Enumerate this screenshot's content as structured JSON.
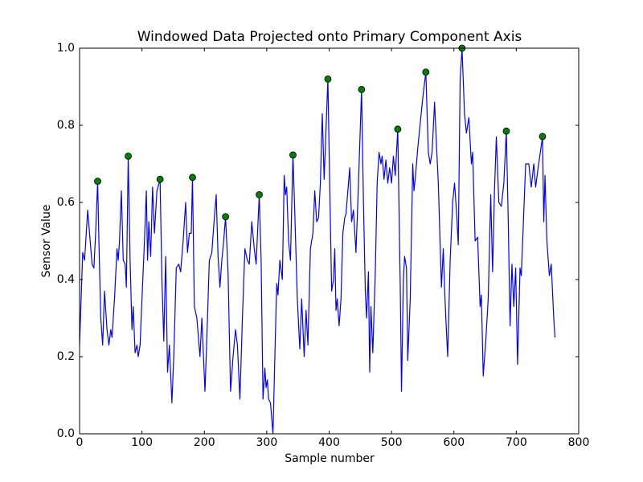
{
  "chart_data": {
    "type": "line",
    "title": "Windowed Data Projected onto Primary Component Axis",
    "x_label": "Sample number",
    "y_label": "Sensor Value",
    "xlim": [
      0,
      800
    ],
    "xticks": [
      0,
      100,
      200,
      300,
      400,
      500,
      600,
      700,
      800
    ],
    "ylim": [
      0,
      1
    ],
    "yticks": [
      {
        "value": 0,
        "label": "0.0"
      },
      {
        "value": 0.2,
        "label": "0.2"
      },
      {
        "value": 0.4,
        "label": "0.4"
      },
      {
        "value": 0.6,
        "label": "0.6"
      },
      {
        "value": 0.8,
        "label": "0.8"
      },
      {
        "value": 1,
        "label": "1.0"
      }
    ],
    "grid": false,
    "series": [
      {
        "type": "line",
        "color": "#0000ff",
        "x": [
          0,
          5,
          8,
          13,
          17,
          20,
          23,
          26,
          29,
          31,
          34,
          37,
          40,
          44,
          47,
          50,
          52,
          56,
          60,
          62,
          64,
          67,
          70,
          73,
          75,
          78,
          81,
          84,
          86,
          89,
          92,
          94,
          97,
          100,
          104,
          107,
          109,
          111,
          114,
          117,
          120,
          124,
          129,
          132,
          135,
          138,
          141,
          144,
          148,
          151,
          155,
          159,
          162,
          166,
          170,
          173,
          176,
          179,
          181,
          184,
          188,
          193,
          196,
          201,
          204,
          208,
          212,
          216,
          219,
          222,
          225,
          228,
          231,
          234,
          238,
          242,
          246,
          250,
          253,
          257,
          261,
          265,
          269,
          272,
          276,
          280,
          283,
          288,
          291,
          294,
          297,
          299,
          301,
          303,
          306,
          310,
          313,
          316,
          318,
          321,
          325,
          328,
          330,
          332,
          335,
          338,
          342,
          345,
          349,
          353,
          356,
          360,
          363,
          366,
          370,
          374,
          377,
          380,
          383,
          386,
          389,
          392,
          398,
          401,
          404,
          407,
          409,
          411,
          413,
          416,
          419,
          422,
          425,
          427,
          430,
          433,
          436,
          439,
          443,
          446,
          452,
          455,
          458,
          460,
          463,
          465,
          467,
          470,
          474,
          477,
          480,
          483,
          485,
          488,
          491,
          494,
          497,
          500,
          503,
          506,
          510,
          514,
          516,
          519,
          521,
          524,
          526,
          530,
          534,
          536,
          539,
          542,
          550,
          555,
          559,
          562,
          565,
          569,
          572,
          575,
          580,
          583,
          585,
          587,
          590,
          594,
          598,
          601,
          604,
          607,
          610,
          613,
          617,
          620,
          624,
          628,
          630,
          634,
          638,
          642,
          644,
          647,
          651,
          655,
          659,
          662,
          665,
          668,
          672,
          676,
          680,
          684,
          687,
          690,
          693,
          696,
          699,
          702,
          706,
          708,
          715,
          720,
          724,
          728,
          731,
          735,
          742,
          744,
          746,
          749,
          753,
          756,
          760,
          762
        ],
        "values": [
          0.23,
          0.47,
          0.45,
          0.58,
          0.5,
          0.44,
          0.43,
          0.53,
          0.655,
          0.5,
          0.3,
          0.23,
          0.37,
          0.27,
          0.23,
          0.27,
          0.25,
          0.35,
          0.48,
          0.45,
          0.5,
          0.63,
          0.45,
          0.44,
          0.38,
          0.72,
          0.45,
          0.27,
          0.33,
          0.21,
          0.23,
          0.2,
          0.23,
          0.35,
          0.5,
          0.63,
          0.45,
          0.55,
          0.46,
          0.64,
          0.52,
          0.63,
          0.66,
          0.4,
          0.24,
          0.46,
          0.16,
          0.23,
          0.08,
          0.2,
          0.43,
          0.44,
          0.42,
          0.5,
          0.6,
          0.47,
          0.52,
          0.52,
          0.665,
          0.33,
          0.3,
          0.2,
          0.3,
          0.11,
          0.25,
          0.45,
          0.47,
          0.56,
          0.62,
          0.46,
          0.38,
          0.45,
          0.5,
          0.563,
          0.42,
          0.11,
          0.2,
          0.27,
          0.23,
          0.09,
          0.3,
          0.48,
          0.45,
          0.44,
          0.55,
          0.48,
          0.44,
          0.62,
          0.45,
          0.09,
          0.17,
          0.12,
          0.14,
          0.09,
          0.08,
          0,
          0.2,
          0.39,
          0.36,
          0.45,
          0.4,
          0.67,
          0.62,
          0.64,
          0.5,
          0.45,
          0.723,
          0.57,
          0.35,
          0.22,
          0.35,
          0.2,
          0.32,
          0.23,
          0.48,
          0.52,
          0.63,
          0.55,
          0.56,
          0.65,
          0.83,
          0.66,
          0.92,
          0.64,
          0.37,
          0.4,
          0.48,
          0.32,
          0.35,
          0.28,
          0.35,
          0.52,
          0.56,
          0.57,
          0.63,
          0.69,
          0.55,
          0.58,
          0.47,
          0.6,
          0.893,
          0.6,
          0.37,
          0.3,
          0.42,
          0.16,
          0.33,
          0.21,
          0.42,
          0.65,
          0.73,
          0.7,
          0.72,
          0.66,
          0.71,
          0.65,
          0.69,
          0.65,
          0.72,
          0.67,
          0.79,
          0.38,
          0.11,
          0.4,
          0.46,
          0.43,
          0.19,
          0.35,
          0.7,
          0.63,
          0.68,
          0.74,
          0.87,
          0.938,
          0.73,
          0.7,
          0.73,
          0.86,
          0.75,
          0.65,
          0.38,
          0.48,
          0.38,
          0.3,
          0.2,
          0.45,
          0.6,
          0.65,
          0.58,
          0.49,
          0.92,
          1.0,
          0.83,
          0.78,
          0.82,
          0.7,
          0.73,
          0.5,
          0.51,
          0.33,
          0.36,
          0.15,
          0.24,
          0.35,
          0.62,
          0.42,
          0.63,
          0.77,
          0.6,
          0.59,
          0.65,
          0.785,
          0.56,
          0.28,
          0.44,
          0.33,
          0.43,
          0.18,
          0.43,
          0.41,
          0.7,
          0.7,
          0.64,
          0.7,
          0.64,
          0.69,
          0.771,
          0.55,
          0.67,
          0.5,
          0.41,
          0.44,
          0.3,
          0.25
        ]
      },
      {
        "type": "scatter",
        "color": "#008000",
        "x": [
          29,
          78,
          129,
          181,
          234,
          288,
          342,
          398,
          452,
          510,
          555,
          613,
          684,
          742
        ],
        "values": [
          0.655,
          0.72,
          0.66,
          0.665,
          0.563,
          0.62,
          0.723,
          0.92,
          0.893,
          0.79,
          0.938,
          1.0,
          0.785,
          0.771
        ]
      }
    ]
  }
}
